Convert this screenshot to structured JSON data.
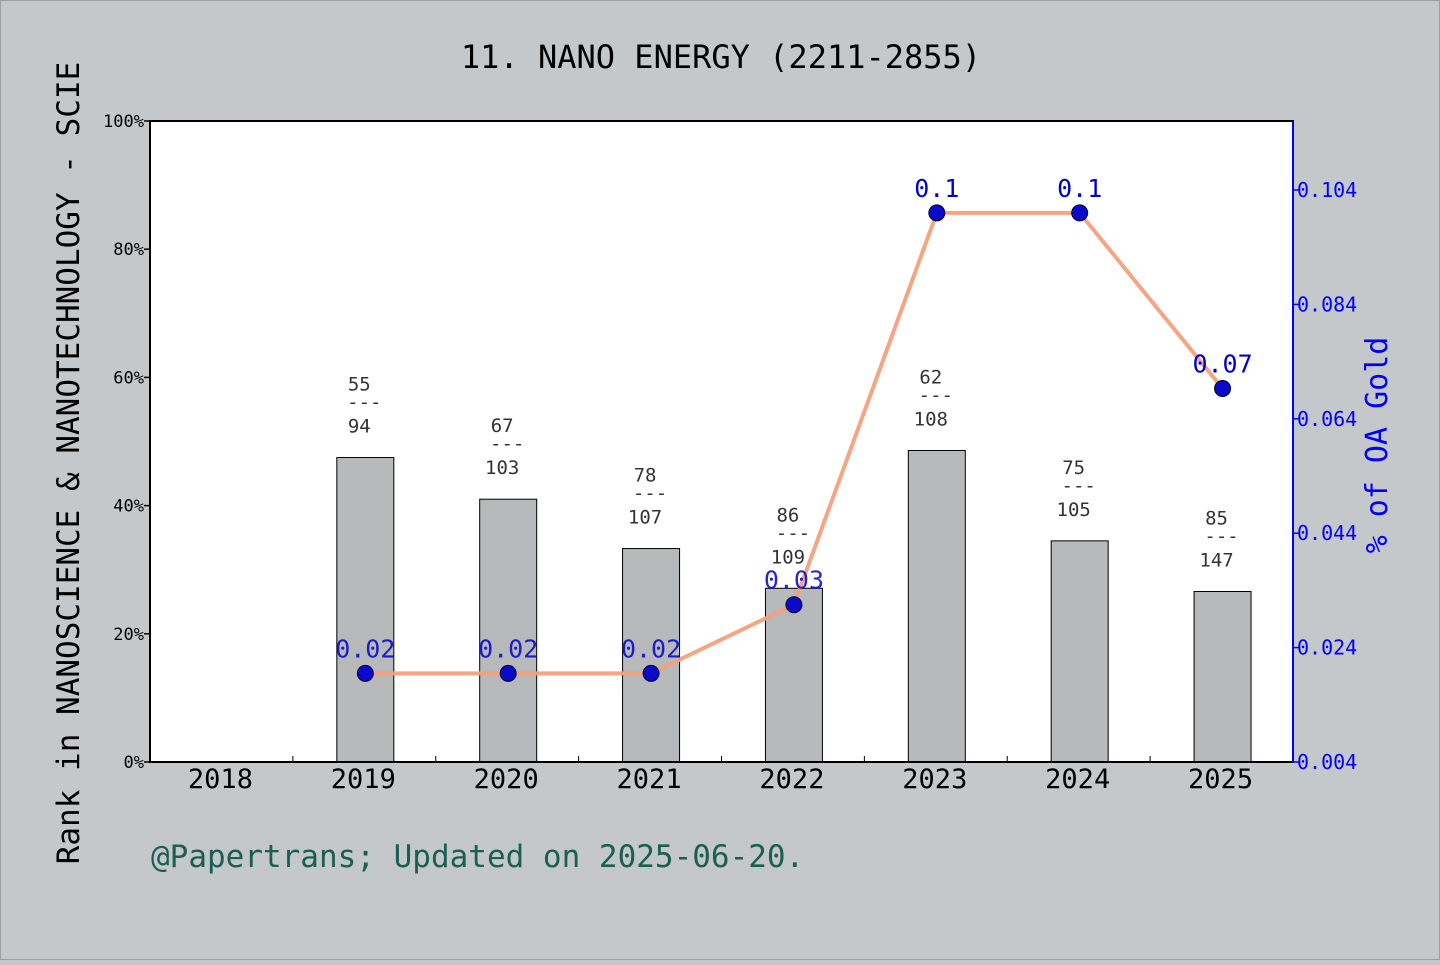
{
  "chart_data": {
    "type": "bar",
    "title": "11. NANO ENERGY (2211-2855)",
    "ylabel": "Rank in NANOSCIENCE & NANOTECHNOLOGY - SCIE",
    "y2label": "% of OA Gold",
    "footnote": "@Papertrans; Updated on 2025-06-20.",
    "categories": [
      "2018",
      "2019",
      "2020",
      "2021",
      "2022",
      "2023",
      "2024",
      "2025"
    ],
    "ylim": [
      0,
      100
    ],
    "y_ticks": [
      "0%",
      "20%",
      "40%",
      "60%",
      "80%",
      "100%"
    ],
    "y2lim": [
      0.004,
      0.104
    ],
    "y2_ticks": [
      "0.004",
      "0.024",
      "0.044",
      "0.064",
      "0.084",
      "0.104"
    ],
    "bars": {
      "values": [
        null,
        47.5,
        41.0,
        33.3,
        27.1,
        48.6,
        34.5,
        26.6
      ],
      "labels": [
        null,
        {
          "rank": "55",
          "total": "94"
        },
        {
          "rank": "67",
          "total": "103"
        },
        {
          "rank": "78",
          "total": "107"
        },
        {
          "rank": "86",
          "total": "109"
        },
        {
          "rank": "62",
          "total": "108"
        },
        {
          "rank": "75",
          "total": "105"
        },
        {
          "rank": "85",
          "total": "147"
        }
      ],
      "separator": "---",
      "color": "#b8b9ba"
    },
    "line": {
      "values": [
        null,
        0.02,
        0.02,
        0.02,
        0.03,
        0.1,
        0.1,
        0.07
      ],
      "labels": [
        null,
        "0.02",
        "0.02",
        "0.02",
        "0.03",
        "0.1",
        "0.1",
        "0.07"
      ],
      "plot_values": [
        null,
        0.0195,
        0.0195,
        0.0195,
        0.0315,
        0.1,
        0.1,
        0.0693
      ],
      "line_color": "#f4a07c",
      "marker_color": "#0a0ac8",
      "label_color": "#0000cc"
    },
    "grid": false,
    "legend": "none"
  },
  "colors": {
    "background": "#c4c8cb",
    "plot_area": "#ffffff",
    "right_axis": "#0000ff",
    "footnote": "#1b5e52"
  }
}
